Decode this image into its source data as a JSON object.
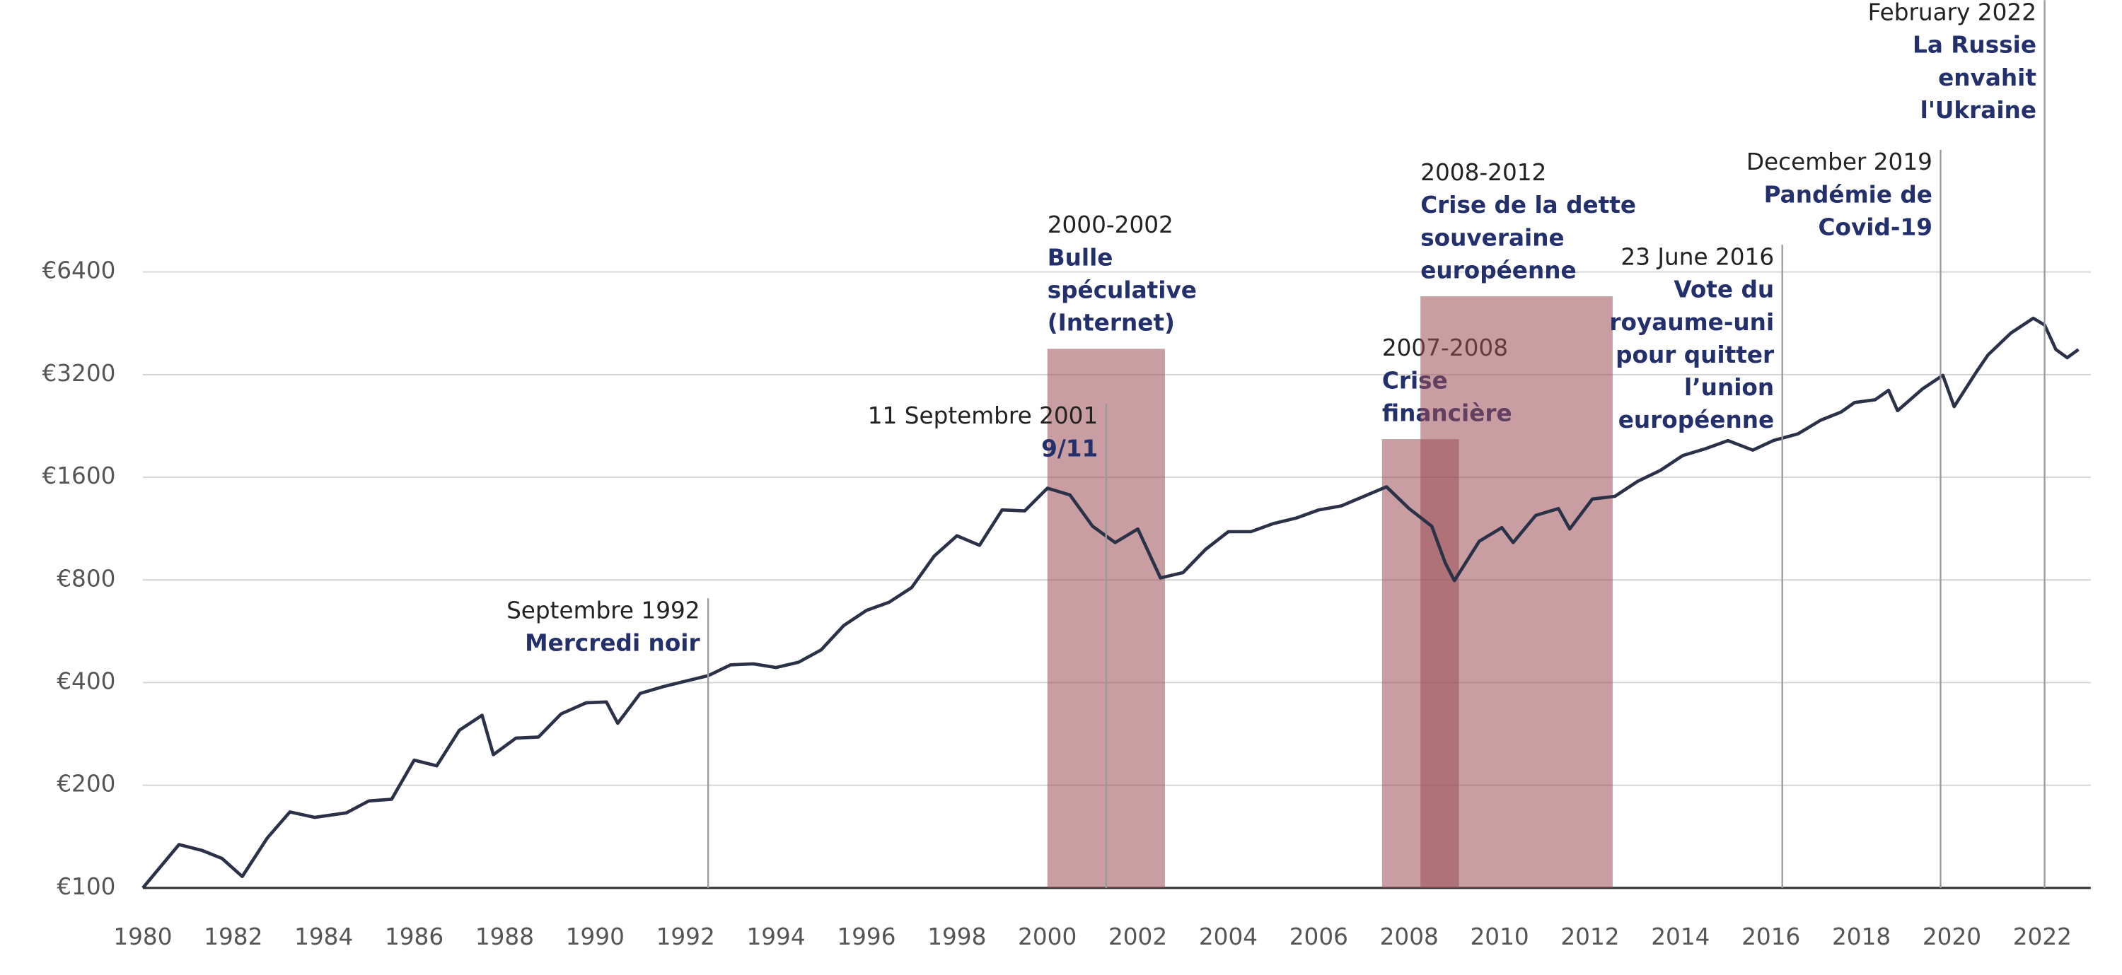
{
  "chart_data": {
    "type": "line",
    "color": "#2b3147",
    "log_scale": true,
    "grid": true,
    "xlim": [
      1980,
      2023.07
    ],
    "xticks": [
      1980,
      1982,
      1984,
      1986,
      1988,
      1990,
      1992,
      1994,
      1996,
      1998,
      2000,
      2002,
      2004,
      2006,
      2008,
      2010,
      2012,
      2014,
      2016,
      2018,
      2020,
      2022
    ],
    "ylim": [
      100,
      6400
    ],
    "yticks": [
      {
        "value": 100,
        "label": "€100"
      },
      {
        "value": 200,
        "label": "€200"
      },
      {
        "value": 400,
        "label": "€400"
      },
      {
        "value": 800,
        "label": "€800"
      },
      {
        "value": 1600,
        "label": "€1600"
      },
      {
        "value": 3200,
        "label": "€3200"
      },
      {
        "value": 6400,
        "label": "€6400"
      }
    ],
    "x": [
      1980.0,
      1980.8,
      1981.3,
      1981.75,
      1982.2,
      1982.75,
      1983.25,
      1983.8,
      1984.5,
      1985.0,
      1985.5,
      1986.0,
      1986.5,
      1987.0,
      1987.5,
      1987.75,
      1988.25,
      1988.75,
      1989.25,
      1989.8,
      1990.25,
      1990.5,
      1991.0,
      1991.5,
      1992.0,
      1992.5,
      1993.0,
      1993.5,
      1994.0,
      1994.5,
      1995.0,
      1995.5,
      1996.0,
      1996.5,
      1997.0,
      1997.5,
      1998.0,
      1998.5,
      1999.0,
      1999.5,
      2000.0,
      2000.5,
      2001.0,
      2001.5,
      2002.0,
      2002.5,
      2003.0,
      2003.5,
      2004.0,
      2004.5,
      2005.0,
      2005.5,
      2006.0,
      2006.5,
      2007.0,
      2007.5,
      2008.0,
      2008.5,
      2008.8,
      2009.0,
      2009.55,
      2010.05,
      2010.3,
      2010.8,
      2011.3,
      2011.55,
      2012.05,
      2012.55,
      2013.05,
      2013.55,
      2014.05,
      2014.55,
      2015.05,
      2015.6,
      2016.05,
      2016.6,
      2017.1,
      2017.55,
      2017.85,
      2018.3,
      2018.6,
      2018.8,
      2019.35,
      2019.8,
      2020.05,
      2020.55,
      2020.8,
      2021.3,
      2021.8,
      2022.05,
      2022.3,
      2022.55,
      2022.8
    ],
    "values": [
      100,
      134,
      129,
      122,
      108,
      140,
      167,
      161,
      166,
      180,
      182,
      237,
      228,
      290,
      321,
      246,
      275,
      277,
      324,
      349,
      351,
      304,
      372,
      389,
      404,
      419,
      451,
      454,
      443,
      459,
      499,
      588,
      651,
      688,
      760,
      940,
      1078,
      1011,
      1284,
      1275,
      1487,
      1420,
      1150,
      1030,
      1129,
      811,
      841,
      984,
      1108,
      1108,
      1171,
      1215,
      1284,
      1320,
      1407,
      1500,
      1295,
      1150,
      897,
      796,
      1039,
      1139,
      1030,
      1237,
      1295,
      1129,
      1382,
      1407,
      1556,
      1675,
      1853,
      1940,
      2050,
      1923,
      2050,
      2146,
      2352,
      2486,
      2650,
      2700,
      2880,
      2509,
      2906,
      3185,
      2580,
      3270,
      3656,
      4234,
      4685,
      4473,
      3793,
      3590,
      3793
    ],
    "periods": [
      {
        "start": 2000.0,
        "end": 2002.6,
        "top": 3810,
        "title": "2000-2002",
        "lines": [
          "Bulle",
          "spéculative",
          "(Internet)"
        ],
        "color": "#9b4f57"
      },
      {
        "start": 2007.4,
        "end": 2009.1,
        "top": 2070,
        "title": "2007-2008",
        "lines": [
          "Crise",
          "financière"
        ],
        "color": "#9b4f57"
      },
      {
        "start": 2008.25,
        "end": 2012.5,
        "top": 5430,
        "title": "2008-2012",
        "lines": [
          "Crise de la dette",
          "souveraine",
          "européenne"
        ],
        "color": "#9b4f57"
      }
    ],
    "events": [
      {
        "x": 1992.5,
        "top": 707,
        "date": "Septembre 1992",
        "lines": [
          "Mercredi noir"
        ]
      },
      {
        "x": 2001.3,
        "top": 2630,
        "date": "11 Septembre 2001",
        "lines": [
          "9/11"
        ]
      },
      {
        "x": 2016.25,
        "top": 7690,
        "date": "23 June 2016",
        "lines": [
          "Vote du",
          "royaume-uni",
          "pour quitter",
          "l’union",
          "européenne"
        ]
      },
      {
        "x": 2019.75,
        "top": 14600,
        "date": "December 2019",
        "lines": [
          "Pandémie de",
          "Covid-19"
        ]
      },
      {
        "x": 2022.05,
        "top": 40100,
        "date": "February 2022",
        "lines": [
          "La Russie",
          "envahit",
          "l'Ukraine"
        ]
      }
    ]
  }
}
